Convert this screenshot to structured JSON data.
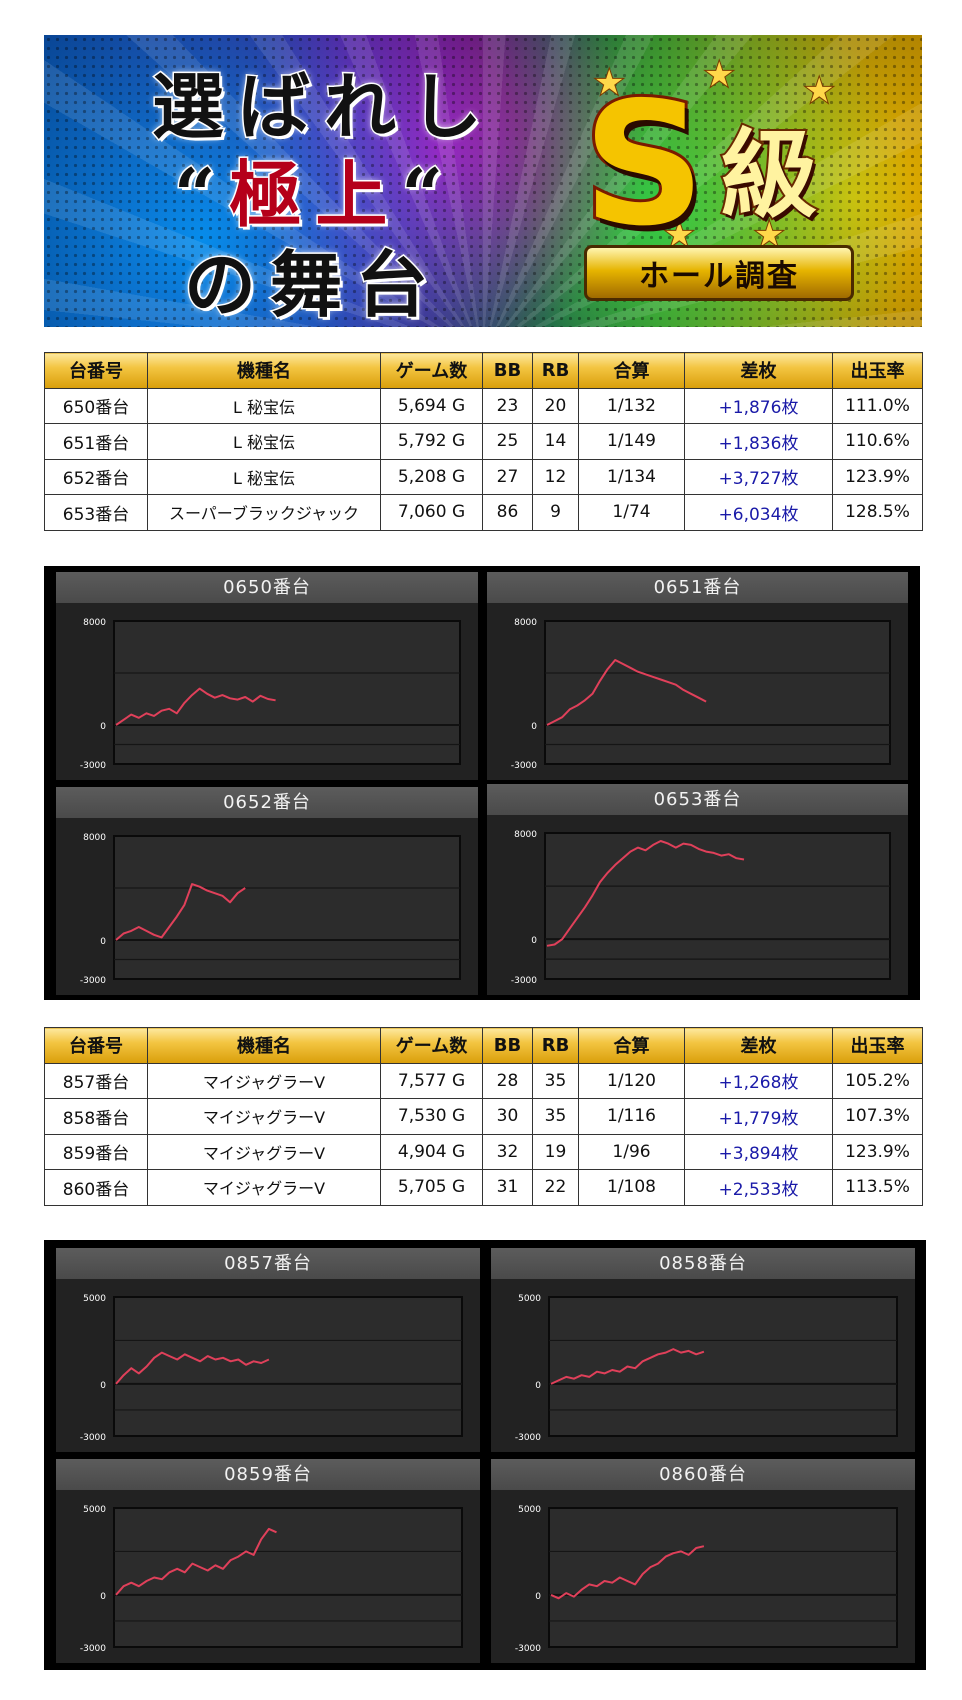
{
  "banner": {
    "line1": "選ばれし",
    "line2_open": "“",
    "line2_red": "極上",
    "line2_close": "“",
    "line3": "の舞台",
    "badge_letter": "S",
    "badge_kanji": "級",
    "badge_ribbon": "ホール調査",
    "colors": {
      "red_accent": "#b5001a",
      "gold": "#f5c400"
    }
  },
  "table_headers": [
    "台番号",
    "機種名",
    "ゲーム数",
    "BB",
    "RB",
    "合算",
    "差枚",
    "出玉率"
  ],
  "table1": [
    {
      "no": "650番台",
      "model": "L 秘宝伝",
      "games": "5,694 G",
      "bb": "23",
      "rb": "20",
      "combined": "1/132",
      "diff": "+1,876枚",
      "rate": "111.0%"
    },
    {
      "no": "651番台",
      "model": "L 秘宝伝",
      "games": "5,792 G",
      "bb": "25",
      "rb": "14",
      "combined": "1/149",
      "diff": "+1,836枚",
      "rate": "110.6%"
    },
    {
      "no": "652番台",
      "model": "L 秘宝伝",
      "games": "5,208 G",
      "bb": "27",
      "rb": "12",
      "combined": "1/134",
      "diff": "+3,727枚",
      "rate": "123.9%"
    },
    {
      "no": "653番台",
      "model": "スーパーブラックジャック",
      "games": "7,060 G",
      "bb": "86",
      "rb": "9",
      "combined": "1/74",
      "diff": "+6,034枚",
      "rate": "128.5%"
    }
  ],
  "table2": [
    {
      "no": "857番台",
      "model": "マイジャグラーV",
      "games": "7,577 G",
      "bb": "28",
      "rb": "35",
      "combined": "1/120",
      "diff": "+1,268枚",
      "rate": "105.2%"
    },
    {
      "no": "858番台",
      "model": "マイジャグラーV",
      "games": "7,530 G",
      "bb": "30",
      "rb": "35",
      "combined": "1/116",
      "diff": "+1,779枚",
      "rate": "107.3%"
    },
    {
      "no": "859番台",
      "model": "マイジャグラーV",
      "games": "4,904 G",
      "bb": "32",
      "rb": "19",
      "combined": "1/96",
      "diff": "+3,894枚",
      "rate": "123.9%"
    },
    {
      "no": "860番台",
      "model": "マイジャグラーV",
      "games": "5,705 G",
      "bb": "31",
      "rb": "22",
      "combined": "1/108",
      "diff": "+2,533枚",
      "rate": "113.5%"
    }
  ],
  "chart_data": [
    {
      "type": "line",
      "title": "0650番台",
      "ylim": [
        -3000,
        8000
      ],
      "yticks": [
        "8000",
        "0",
        "-3000"
      ],
      "grid": true,
      "x": [
        0,
        1,
        2,
        3,
        4,
        5,
        6,
        7,
        8,
        9,
        10,
        11,
        12,
        13,
        14,
        15,
        16,
        17,
        18,
        19,
        20,
        21
      ],
      "y": [
        0,
        400,
        800,
        550,
        900,
        700,
        1100,
        1250,
        900,
        1700,
        2300,
        2800,
        2400,
        2100,
        2300,
        2050,
        1950,
        2150,
        1800,
        2250,
        2000,
        1900
      ]
    },
    {
      "type": "line",
      "title": "0651番台",
      "ylim": [
        -3000,
        8000
      ],
      "yticks": [
        "8000",
        "0",
        "-3000"
      ],
      "grid": true,
      "x": [
        0,
        1,
        2,
        3,
        4,
        5,
        6,
        7,
        8,
        9,
        10,
        11,
        12,
        13,
        14,
        15,
        16,
        17,
        18,
        19,
        20,
        21
      ],
      "y": [
        0,
        300,
        600,
        1200,
        1500,
        1900,
        2400,
        3400,
        4300,
        5000,
        4700,
        4400,
        4100,
        3900,
        3700,
        3500,
        3300,
        3100,
        2700,
        2400,
        2100,
        1800
      ]
    },
    {
      "type": "line",
      "title": "0652番台",
      "ylim": [
        -3000,
        8000
      ],
      "yticks": [
        "8000",
        "0",
        "-3000"
      ],
      "grid": true,
      "x": [
        0,
        1,
        2,
        3,
        4,
        5,
        6,
        7,
        8,
        9,
        10,
        11,
        12,
        13,
        14,
        15,
        16,
        17
      ],
      "y": [
        0,
        500,
        700,
        1000,
        700,
        400,
        200,
        1000,
        1800,
        2700,
        4300,
        4100,
        3800,
        3600,
        3400,
        2900,
        3600,
        4000
      ]
    },
    {
      "type": "line",
      "title": "0653番台",
      "ylim": [
        -3000,
        8000
      ],
      "yticks": [
        "8000",
        "0",
        "-3000"
      ],
      "grid": true,
      "x": [
        0,
        1,
        2,
        3,
        4,
        5,
        6,
        7,
        8,
        9,
        10,
        11,
        12,
        13,
        14,
        15,
        16,
        17,
        18,
        19,
        20,
        21,
        22,
        23,
        24,
        25,
        26
      ],
      "y": [
        -500,
        -400,
        0,
        800,
        1600,
        2400,
        3300,
        4300,
        5000,
        5600,
        6100,
        6600,
        6900,
        6700,
        7100,
        7400,
        7200,
        6900,
        7200,
        7100,
        6800,
        6600,
        6500,
        6300,
        6400,
        6100,
        6000
      ]
    },
    {
      "type": "line",
      "title": "0857番台",
      "ylim": [
        -3000,
        5000
      ],
      "yticks": [
        "5000",
        "0",
        "-3000"
      ],
      "grid": true,
      "x": [
        0,
        1,
        2,
        3,
        4,
        5,
        6,
        7,
        8,
        9,
        10,
        11,
        12,
        13,
        14,
        15,
        16,
        17,
        18,
        19,
        20
      ],
      "y": [
        0,
        500,
        900,
        600,
        1000,
        1500,
        1800,
        1600,
        1400,
        1700,
        1500,
        1300,
        1600,
        1400,
        1500,
        1300,
        1400,
        1100,
        1300,
        1200,
        1400
      ]
    },
    {
      "type": "line",
      "title": "0858番台",
      "ylim": [
        -3000,
        5000
      ],
      "yticks": [
        "5000",
        "0",
        "-3000"
      ],
      "grid": true,
      "x": [
        0,
        1,
        2,
        3,
        4,
        5,
        6,
        7,
        8,
        9,
        10,
        11,
        12,
        13,
        14,
        15,
        16,
        17,
        18,
        19,
        20
      ],
      "y": [
        0,
        200,
        400,
        300,
        500,
        400,
        700,
        600,
        800,
        700,
        1000,
        900,
        1300,
        1500,
        1700,
        1800,
        2000,
        1800,
        1900,
        1700,
        1850
      ]
    },
    {
      "type": "line",
      "title": "0859番台",
      "ylim": [
        -3000,
        5000
      ],
      "yticks": [
        "5000",
        "0",
        "-3000"
      ],
      "grid": true,
      "x": [
        0,
        1,
        2,
        3,
        4,
        5,
        6,
        7,
        8,
        9,
        10,
        11,
        12,
        13,
        14,
        15,
        16,
        17,
        18,
        19,
        20,
        21
      ],
      "y": [
        0,
        500,
        700,
        500,
        800,
        1000,
        900,
        1300,
        1500,
        1300,
        1800,
        1600,
        1400,
        1700,
        1500,
        2000,
        2200,
        2500,
        2300,
        3200,
        3800,
        3600
      ]
    },
    {
      "type": "line",
      "title": "0860番台",
      "ylim": [
        -3000,
        5000
      ],
      "yticks": [
        "5000",
        "0",
        "-3000"
      ],
      "grid": true,
      "x": [
        0,
        1,
        2,
        3,
        4,
        5,
        6,
        7,
        8,
        9,
        10,
        11,
        12,
        13,
        14,
        15,
        16,
        17,
        18,
        19,
        20
      ],
      "y": [
        0,
        -200,
        100,
        -100,
        300,
        600,
        500,
        800,
        700,
        1000,
        800,
        600,
        1200,
        1600,
        1800,
        2200,
        2400,
        2500,
        2300,
        2700,
        2800
      ]
    }
  ],
  "colors": {
    "line": "#e0405a",
    "diff_text": "#1a1aa8"
  }
}
